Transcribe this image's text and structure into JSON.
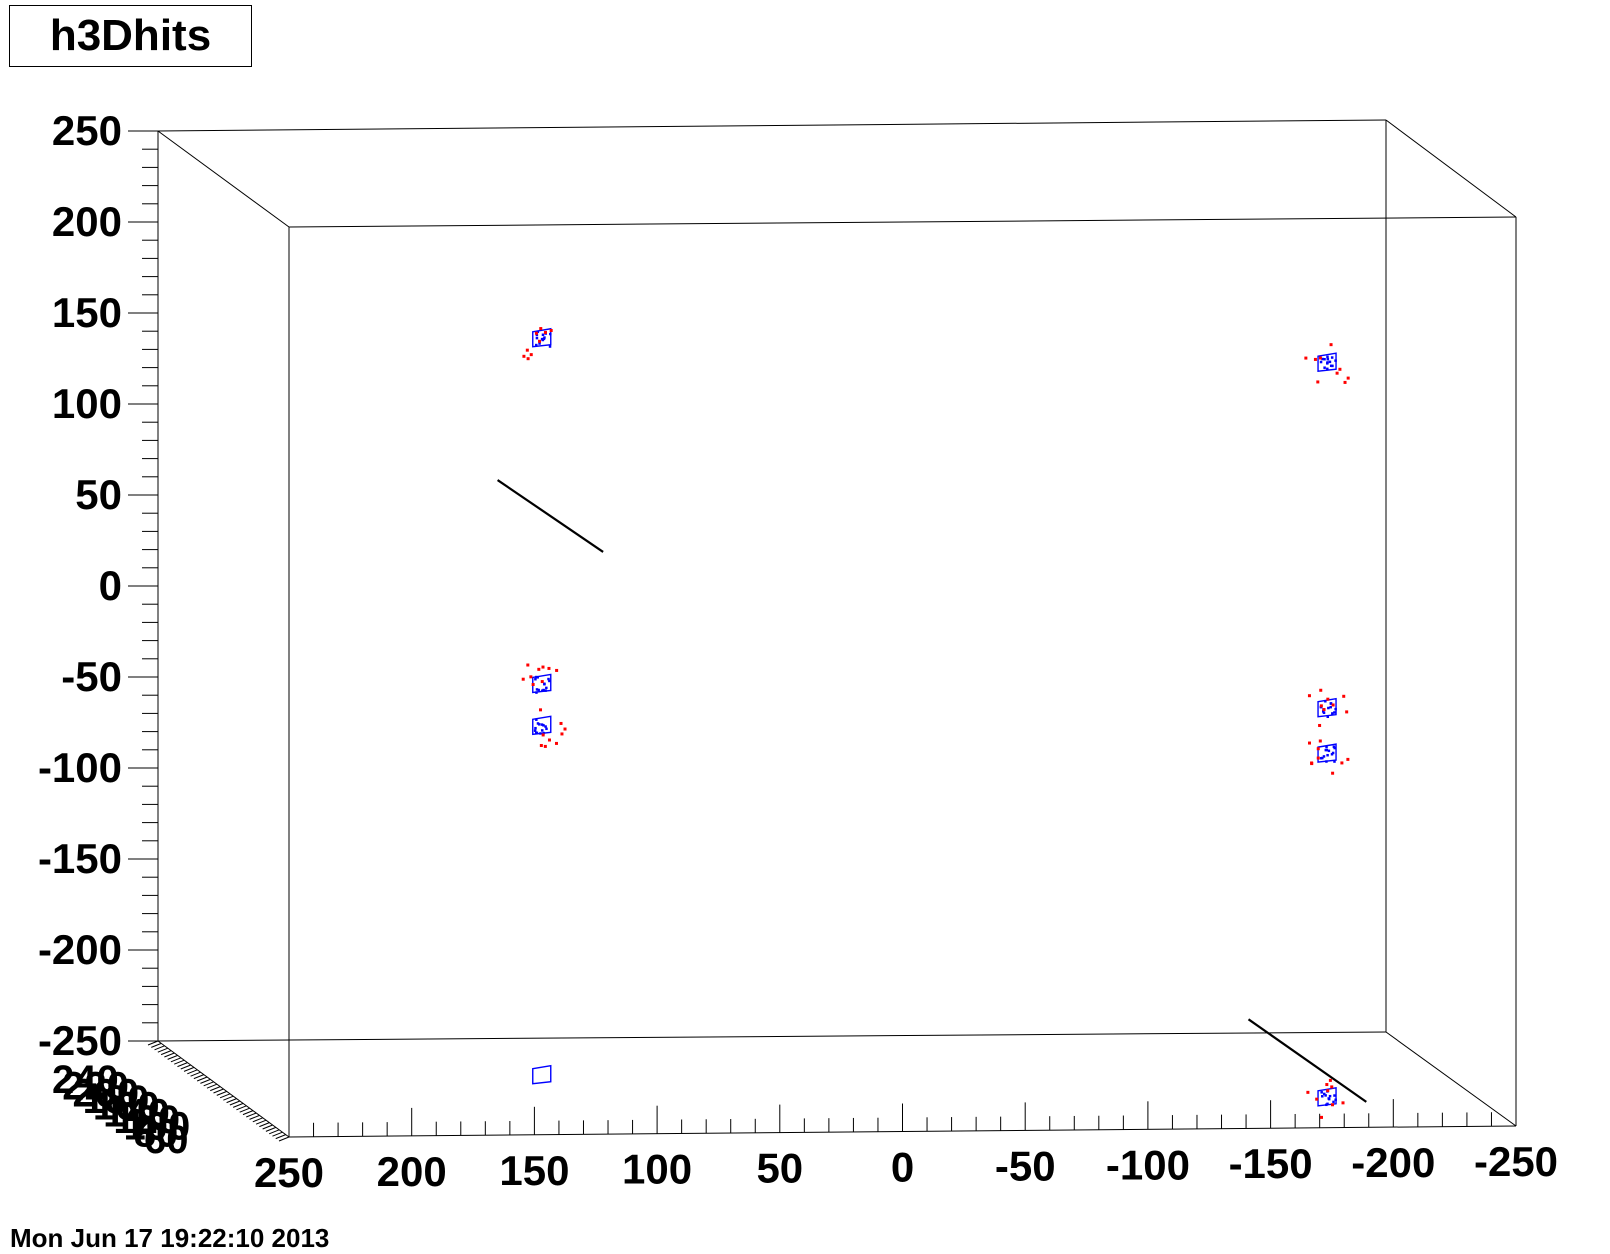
{
  "title": "h3Dhits",
  "timestamp": "Mon Jun 17 19:22:10 2013",
  "colors": {
    "hits": "#ff0000",
    "clusters": "#0000ff",
    "tracks": "#000000",
    "frame": "#000000"
  },
  "chart_data": {
    "type": "scatter",
    "title": "h3Dhits",
    "y_axis": {
      "ticks": [
        "250",
        "200",
        "150",
        "100",
        "50",
        "0",
        "-50",
        "-100",
        "-150",
        "-200",
        "-250"
      ],
      "range": [
        -250,
        250
      ]
    },
    "x_axis": {
      "ticks": [
        "250",
        "200",
        "150",
        "100",
        "50",
        "0",
        "-50",
        "-100",
        "-150",
        "-200",
        "-250"
      ],
      "range": [
        250,
        -250
      ]
    },
    "z_axis": {
      "ticks": [
        "240",
        "220",
        "200",
        "180",
        "160",
        "140",
        "120",
        "100",
        "80",
        "60"
      ]
    },
    "detector_planes": [
      {
        "x": 147,
        "y": 188
      },
      {
        "x": -173,
        "y": 171
      },
      {
        "x": 147,
        "y": -2
      },
      {
        "x": 147,
        "y": -25
      },
      {
        "x": -173,
        "y": -19
      },
      {
        "x": -173,
        "y": -44
      },
      {
        "x": 147,
        "y": -217
      },
      {
        "x": -173,
        "y": -233
      }
    ],
    "track_segments": [
      {
        "from": [
          165,
          110
        ],
        "to": [
          122,
          70
        ]
      },
      {
        "from": [
          -141,
          -190
        ],
        "to": [
          -189,
          -236
        ]
      }
    ]
  }
}
